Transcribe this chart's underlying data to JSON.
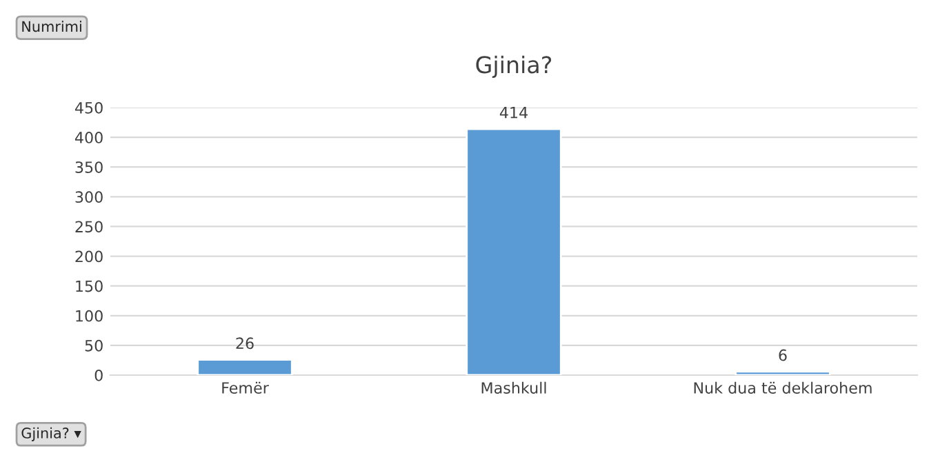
{
  "chart_data": {
    "type": "bar",
    "title": "Gjinia?",
    "categories": [
      "Femër",
      "Mashkull",
      "Nuk dua të deklarohem"
    ],
    "values": [
      26,
      414,
      6
    ],
    "color": "#5b9bd5",
    "ylim": [
      0,
      450
    ],
    "yticks": [
      0,
      50,
      100,
      150,
      200,
      250,
      300,
      350,
      400,
      450
    ],
    "grid": "y",
    "data_labels": true,
    "annotations": [
      "Numrimi",
      "Gjinia? ▾"
    ]
  }
}
